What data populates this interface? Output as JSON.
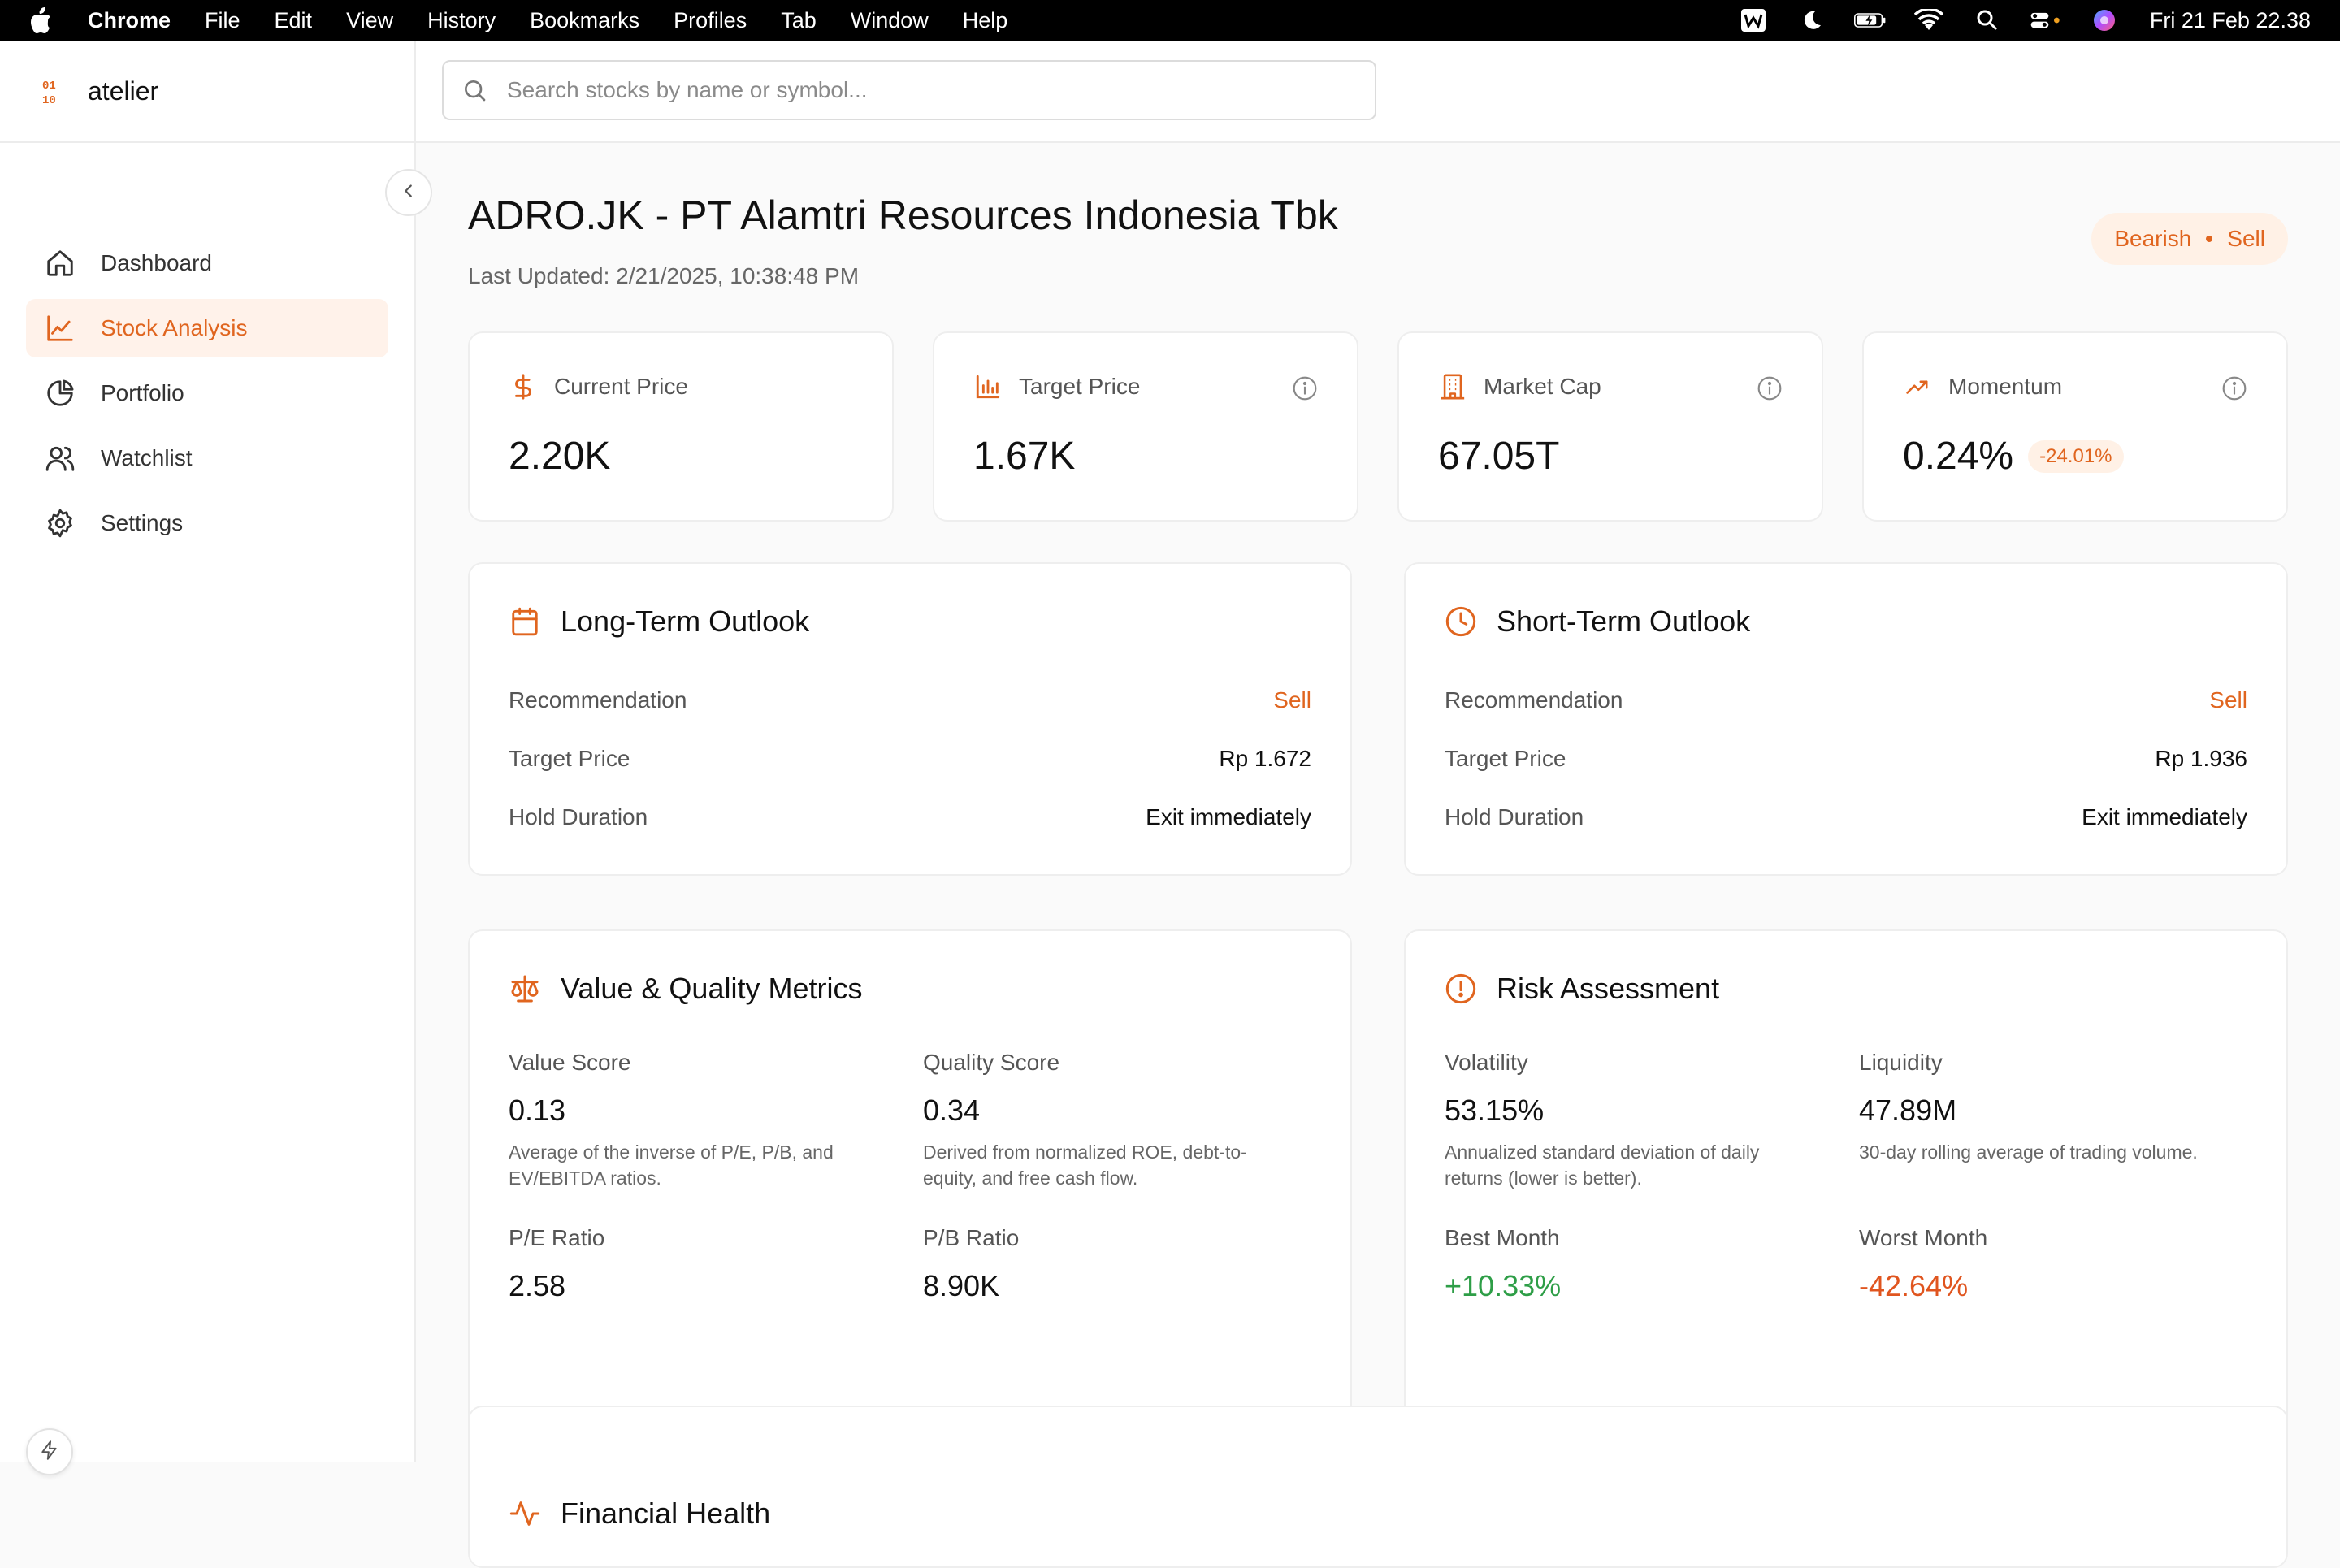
{
  "menubar": {
    "app": "Chrome",
    "items": [
      "File",
      "Edit",
      "View",
      "History",
      "Bookmarks",
      "Profiles",
      "Tab",
      "Window",
      "Help"
    ],
    "clock": "Fri 21 Feb  22.38",
    "status_icons": [
      "wps-icon",
      "moon-icon",
      "battery-icon",
      "wifi-icon",
      "spotlight-icon",
      "control-center-icon",
      "siri-icon"
    ]
  },
  "sidebar": {
    "brand": "atelier",
    "items": [
      {
        "label": "Dashboard",
        "icon": "home-icon",
        "active": false
      },
      {
        "label": "Stock Analysis",
        "icon": "chart-line-icon",
        "active": true
      },
      {
        "label": "Portfolio",
        "icon": "pie-chart-icon",
        "active": false
      },
      {
        "label": "Watchlist",
        "icon": "users-icon",
        "active": false
      },
      {
        "label": "Settings",
        "icon": "gear-icon",
        "active": false
      }
    ]
  },
  "search": {
    "placeholder": "Search stocks by name or symbol...",
    "value": ""
  },
  "header": {
    "title": "ADRO.JK - PT Alamtri Resources Indonesia Tbk",
    "last_updated": "Last Updated: 2/21/2025, 10:38:48 PM",
    "signal_trend": "Bearish",
    "signal_action": "Sell"
  },
  "stats": {
    "current_price": {
      "label": "Current Price",
      "value": "2.20K"
    },
    "target_price": {
      "label": "Target Price",
      "value": "1.67K"
    },
    "market_cap": {
      "label": "Market Cap",
      "value": "67.05T"
    },
    "momentum": {
      "label": "Momentum",
      "value": "0.24%",
      "delta": "-24.01%"
    }
  },
  "long_term": {
    "title": "Long-Term Outlook",
    "recommendation_label": "Recommendation",
    "recommendation": "Sell",
    "target_label": "Target Price",
    "target": "Rp 1.672",
    "hold_label": "Hold Duration",
    "hold": "Exit immediately"
  },
  "short_term": {
    "title": "Short-Term Outlook",
    "recommendation_label": "Recommendation",
    "recommendation": "Sell",
    "target_label": "Target Price",
    "target": "Rp 1.936",
    "hold_label": "Hold Duration",
    "hold": "Exit immediately"
  },
  "value_quality": {
    "title": "Value & Quality Metrics",
    "value_score": {
      "label": "Value Score",
      "value": "0.13",
      "desc": "Average of the inverse of P/E, P/B, and EV/EBITDA ratios."
    },
    "quality_score": {
      "label": "Quality Score",
      "value": "0.34",
      "desc": "Derived from normalized ROE, debt-to-equity, and free cash flow."
    },
    "pe_ratio": {
      "label": "P/E Ratio",
      "value": "2.58"
    },
    "pb_ratio": {
      "label": "P/B Ratio",
      "value": "8.90K"
    }
  },
  "risk": {
    "title": "Risk Assessment",
    "volatility": {
      "label": "Volatility",
      "value": "53.15%",
      "desc": "Annualized standard deviation of daily returns (lower is better)."
    },
    "liquidity": {
      "label": "Liquidity",
      "value": "47.89M",
      "desc": "30-day rolling average of trading volume."
    },
    "best_month": {
      "label": "Best Month",
      "value": "+10.33%"
    },
    "worst_month": {
      "label": "Worst Month",
      "value": "-42.64%"
    }
  },
  "next_section": {
    "title": "Financial Health"
  },
  "colors": {
    "accent": "#e0651f",
    "positive": "#2e9e47",
    "negative": "#e0551f"
  }
}
